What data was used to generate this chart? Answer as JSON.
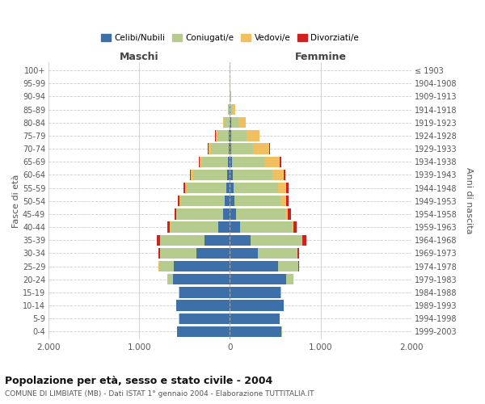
{
  "age_groups": [
    "0-4",
    "5-9",
    "10-14",
    "15-19",
    "20-24",
    "25-29",
    "30-34",
    "35-39",
    "40-44",
    "45-49",
    "50-54",
    "55-59",
    "60-64",
    "65-69",
    "70-74",
    "75-79",
    "80-84",
    "85-89",
    "90-94",
    "95-99",
    "100+"
  ],
  "birth_years": [
    "1999-2003",
    "1994-1998",
    "1989-1993",
    "1984-1988",
    "1979-1983",
    "1974-1978",
    "1969-1973",
    "1964-1968",
    "1959-1963",
    "1954-1958",
    "1949-1953",
    "1944-1948",
    "1939-1943",
    "1934-1938",
    "1929-1933",
    "1924-1928",
    "1919-1923",
    "1914-1918",
    "1909-1913",
    "1904-1908",
    "≤ 1903"
  ],
  "males": {
    "celibi": [
      580,
      560,
      590,
      560,
      630,
      620,
      370,
      280,
      130,
      80,
      55,
      40,
      30,
      20,
      15,
      10,
      5,
      0,
      0,
      0,
      0
    ],
    "coniugati": [
      2,
      2,
      5,
      10,
      60,
      160,
      400,
      490,
      530,
      510,
      490,
      440,
      380,
      290,
      195,
      130,
      60,
      20,
      5,
      2,
      0
    ],
    "vedovi": [
      0,
      0,
      0,
      0,
      2,
      5,
      5,
      5,
      5,
      5,
      10,
      15,
      20,
      25,
      30,
      20,
      10,
      5,
      2,
      0,
      0
    ],
    "divorziati": [
      0,
      0,
      0,
      0,
      2,
      5,
      15,
      35,
      30,
      20,
      20,
      20,
      15,
      10,
      5,
      5,
      2,
      0,
      0,
      0,
      0
    ]
  },
  "females": {
    "nubili": [
      570,
      550,
      590,
      560,
      620,
      530,
      310,
      230,
      110,
      70,
      50,
      40,
      35,
      20,
      15,
      15,
      10,
      5,
      0,
      0,
      0
    ],
    "coniugate": [
      2,
      3,
      5,
      10,
      80,
      220,
      430,
      560,
      570,
      540,
      510,
      490,
      430,
      360,
      240,
      170,
      80,
      25,
      8,
      2,
      0
    ],
    "vedove": [
      0,
      0,
      0,
      0,
      2,
      5,
      5,
      10,
      20,
      30,
      60,
      90,
      130,
      170,
      180,
      140,
      80,
      30,
      8,
      2,
      0
    ],
    "divorziate": [
      0,
      0,
      0,
      0,
      2,
      5,
      20,
      40,
      40,
      30,
      25,
      25,
      20,
      15,
      10,
      5,
      2,
      0,
      0,
      0,
      0
    ]
  },
  "colors": {
    "celibi_nubili": "#3d6fa8",
    "coniugati_e": "#b5cc8e",
    "vedovi_e": "#f0c060",
    "divorziati_e": "#cc2222"
  },
  "title": "Popolazione per età, sesso e stato civile - 2004",
  "subtitle": "COMUNE DI LIMBIATE (MB) - Dati ISTAT 1° gennaio 2004 - Elaborazione TUTTITALIA.IT",
  "xlabel_left": "Maschi",
  "xlabel_right": "Femmine",
  "ylabel_left": "Fasce di età",
  "ylabel_right": "Anni di nascita",
  "xlim": 2000,
  "xticklabels": [
    "2.000",
    "1.000",
    "0",
    "1.000",
    "2.000"
  ],
  "background_color": "#ffffff",
  "grid_color": "#cccccc"
}
